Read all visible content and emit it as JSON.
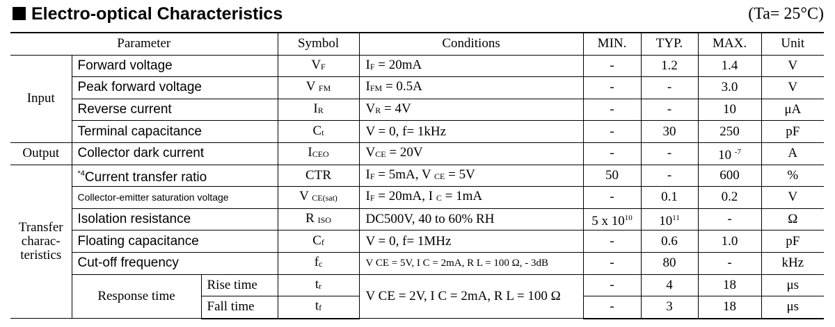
{
  "header": {
    "title": "Electro-optical Characteristics",
    "conditions": "(Ta= 25°C)"
  },
  "columns": {
    "parameter": "Parameter",
    "symbol": "Symbol",
    "conditions": "Conditions",
    "min": "MIN.",
    "typ": "TYP.",
    "max": "MAX.",
    "unit": "Unit"
  },
  "groups": {
    "input": "Input",
    "output": "Output",
    "transfer_1": "Transfer",
    "transfer_2": "charac-",
    "transfer_3": "teristics",
    "response_time": "Response time"
  },
  "rows": [
    {
      "param": "Forward voltage",
      "sym": "V",
      "sym_sub": "F",
      "cond": "I",
      "cond_sub": "F",
      "cond_rest": " = 20mA",
      "min": "-",
      "typ": "1.2",
      "max": "1.4",
      "unit": "V"
    },
    {
      "param": "Peak forward voltage",
      "sym": "V",
      "sym_sub": "FM",
      "cond": "I",
      "cond_sub": "FM",
      "cond_rest": " = 0.5A",
      "min": "-",
      "typ": "-",
      "max": "3.0",
      "unit": "V"
    },
    {
      "param": "Reverse current",
      "sym": "I",
      "sym_sub": "R",
      "cond": "V",
      "cond_sub": "R",
      "cond_rest": " = 4V",
      "min": "-",
      "typ": "-",
      "max": "10",
      "unit": "μA"
    },
    {
      "param": "Terminal capacitance",
      "sym": "C",
      "sym_sub": "t",
      "cond_full": "V = 0, f= 1kHz",
      "min": "-",
      "typ": "30",
      "max": "250",
      "unit": "pF"
    },
    {
      "param": "Collector dark current",
      "sym": "I",
      "sym_sub": "CEO",
      "cond": "V",
      "cond_sub": "CE",
      "cond_rest": " = 20V",
      "min": "-",
      "typ": "-",
      "max_base": "10",
      "max_exp": "-7",
      "unit": "A"
    },
    {
      "param_note": "*4",
      "param": "Current transfer ratio",
      "sym_full": "CTR",
      "cond_a": "I",
      "cond_a_sub": "F",
      "cond_a_rest": " = 5mA, V",
      "cond_b_sub": "CE",
      "cond_b_rest": " = 5V",
      "min": "50",
      "typ": "-",
      "max": "600",
      "unit": "%"
    },
    {
      "param": "Collector-emitter saturation voltage",
      "sym": "V",
      "sym_sub": "CE(sat)",
      "cond_a": "I",
      "cond_a_sub": "F",
      "cond_a_rest": " = 20mA, I",
      "cond_b_sub": "C",
      "cond_b_rest": " = 1mA",
      "min": "-",
      "typ": "0.1",
      "max": "0.2",
      "unit": "V"
    },
    {
      "param": "Isolation resistance",
      "sym": "R",
      "sym_sub": "ISO",
      "cond_full": "DC500V, 40 to 60% RH",
      "min_base": "5 x 10",
      "min_exp": "10",
      "typ_base": "10",
      "typ_exp": "11",
      "max": "-",
      "unit": "Ω"
    },
    {
      "param": "Floating capacitance",
      "sym": "C",
      "sym_sub": "f",
      "cond_full": "V = 0, f= 1MHz",
      "min": "-",
      "typ": "0.6",
      "max": "1.0",
      "unit": "pF"
    },
    {
      "param": "Cut-off frequency",
      "sym": "f",
      "sym_sub": "c",
      "cond_full": "V CE = 5V, I C = 2mA, R L = 100 Ω, - 3dB",
      "min": "-",
      "typ": "80",
      "max": "-",
      "unit": "kHz"
    },
    {
      "param": "Rise time",
      "sym": "t",
      "sym_sub": "r",
      "cond_full": "V CE = 2V, I C = 2mA, R L = 100 Ω",
      "min": "-",
      "typ": "4",
      "max": "18",
      "unit": "μs"
    },
    {
      "param": "Fall time",
      "sym": "t",
      "sym_sub": "f",
      "min": "-",
      "typ": "3",
      "max": "18",
      "unit": "μs"
    }
  ]
}
